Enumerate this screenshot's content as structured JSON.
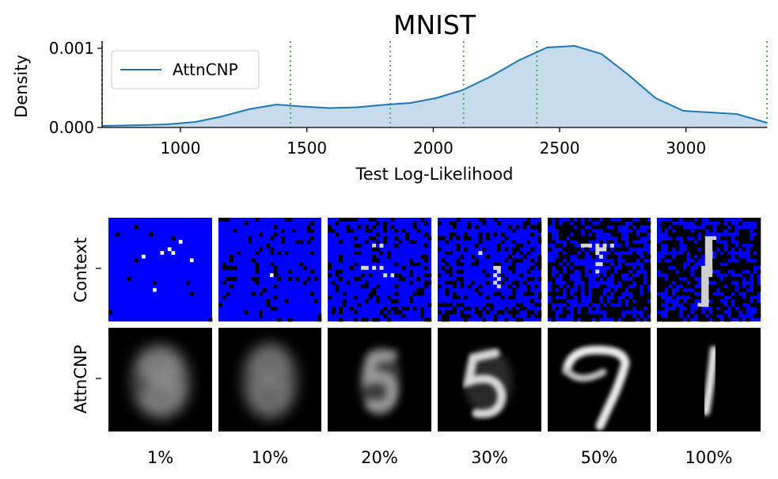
{
  "chart_data": [
    {
      "type": "area",
      "title": "MNIST",
      "xlabel": "Test Log-Likelihood",
      "ylabel": "Density",
      "xlim": [
        690,
        3320
      ],
      "ylim": [
        0,
        0.0011
      ],
      "x_ticks": [
        1000,
        1500,
        2000,
        2500,
        3000
      ],
      "x_tick_labels": [
        "1000",
        "1500",
        "2000",
        "2500",
        "3000"
      ],
      "y_ticks": [
        0,
        0.001
      ],
      "y_tick_labels": [
        "0.000",
        "0.001"
      ],
      "legend_position": "top-left",
      "grid": false,
      "series": [
        {
          "name": "AttnCNP",
          "color": "#1f77b4",
          "fill_color": "#c6dbed",
          "x": [
            690,
            850,
            950,
            1060,
            1165,
            1270,
            1380,
            1480,
            1590,
            1700,
            1800,
            1910,
            2010,
            2115,
            2225,
            2340,
            2450,
            2560,
            2665,
            2770,
            2880,
            2990,
            3095,
            3200,
            3320
          ],
          "y": [
            2e-05,
            3e-05,
            4e-05,
            7e-05,
            0.00014,
            0.00023,
            0.00029,
            0.000265,
            0.000245,
            0.000255,
            0.000285,
            0.00031,
            0.00037,
            0.00047,
            0.00064,
            0.00085,
            0.00101,
            0.00103,
            0.00093,
            0.00067,
            0.00037,
            0.00021,
            0.00019,
            0.00017,
            6e-05
          ]
        }
      ],
      "vertical_lines": {
        "color": "#4daf4a",
        "style": "dotted",
        "x": [
          690,
          1435,
          1830,
          2120,
          2410,
          3320
        ]
      }
    },
    {
      "type": "image_grid",
      "row_labels": [
        "Context",
        "AttnCNP"
      ],
      "col_labels": [
        "1%",
        "10%",
        "20%",
        "30%",
        "50%",
        "100%"
      ],
      "context_fraction": [
        0.01,
        0.1,
        0.2,
        0.3,
        0.5,
        1.0
      ],
      "mask_color": "#0000ff",
      "digits": [
        "8",
        "8",
        "5",
        "5",
        "7",
        "1"
      ]
    }
  ]
}
